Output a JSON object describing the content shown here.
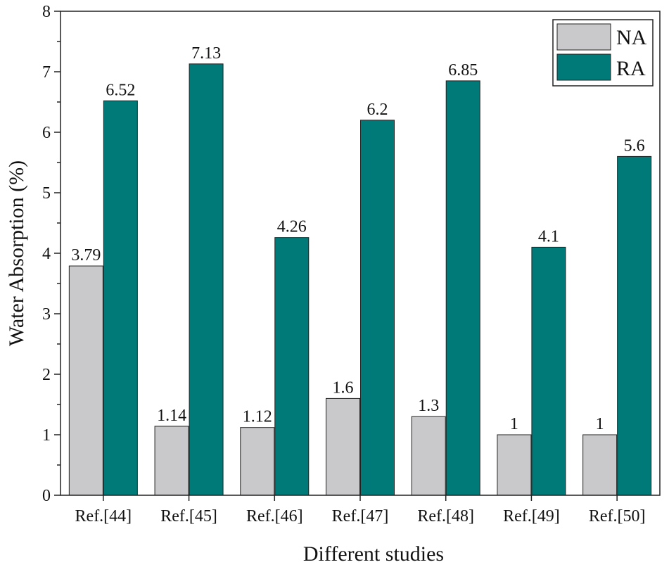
{
  "chart_data": {
    "type": "bar",
    "title": "",
    "xlabel": "Different studies",
    "ylabel": "Water  Absorption (%)",
    "categories": [
      "Ref.[44]",
      "Ref.[45]",
      "Ref.[46]",
      "Ref.[47]",
      "Ref.[48]",
      "Ref.[49]",
      "Ref.[50]"
    ],
    "series": [
      {
        "name": "NA",
        "color": "#c9c9cb",
        "values": [
          3.79,
          1.14,
          1.12,
          1.6,
          1.3,
          1,
          1
        ],
        "labels": [
          "3.79",
          "1.14",
          "1.12",
          "1.6",
          "1.3",
          "1",
          "1"
        ]
      },
      {
        "name": "RA",
        "color": "#007a78",
        "values": [
          6.52,
          7.13,
          4.26,
          6.2,
          6.85,
          4.1,
          5.6
        ],
        "labels": [
          "6.52",
          "7.13",
          "4.26",
          "6.2",
          "6.85",
          "4.1",
          "5.6"
        ]
      }
    ],
    "ylim": [
      0,
      8
    ],
    "yticks": [
      "0",
      "1",
      "2",
      "3",
      "4",
      "5",
      "6",
      "7",
      "8"
    ],
    "grid": false,
    "legend_position": "top-right"
  }
}
